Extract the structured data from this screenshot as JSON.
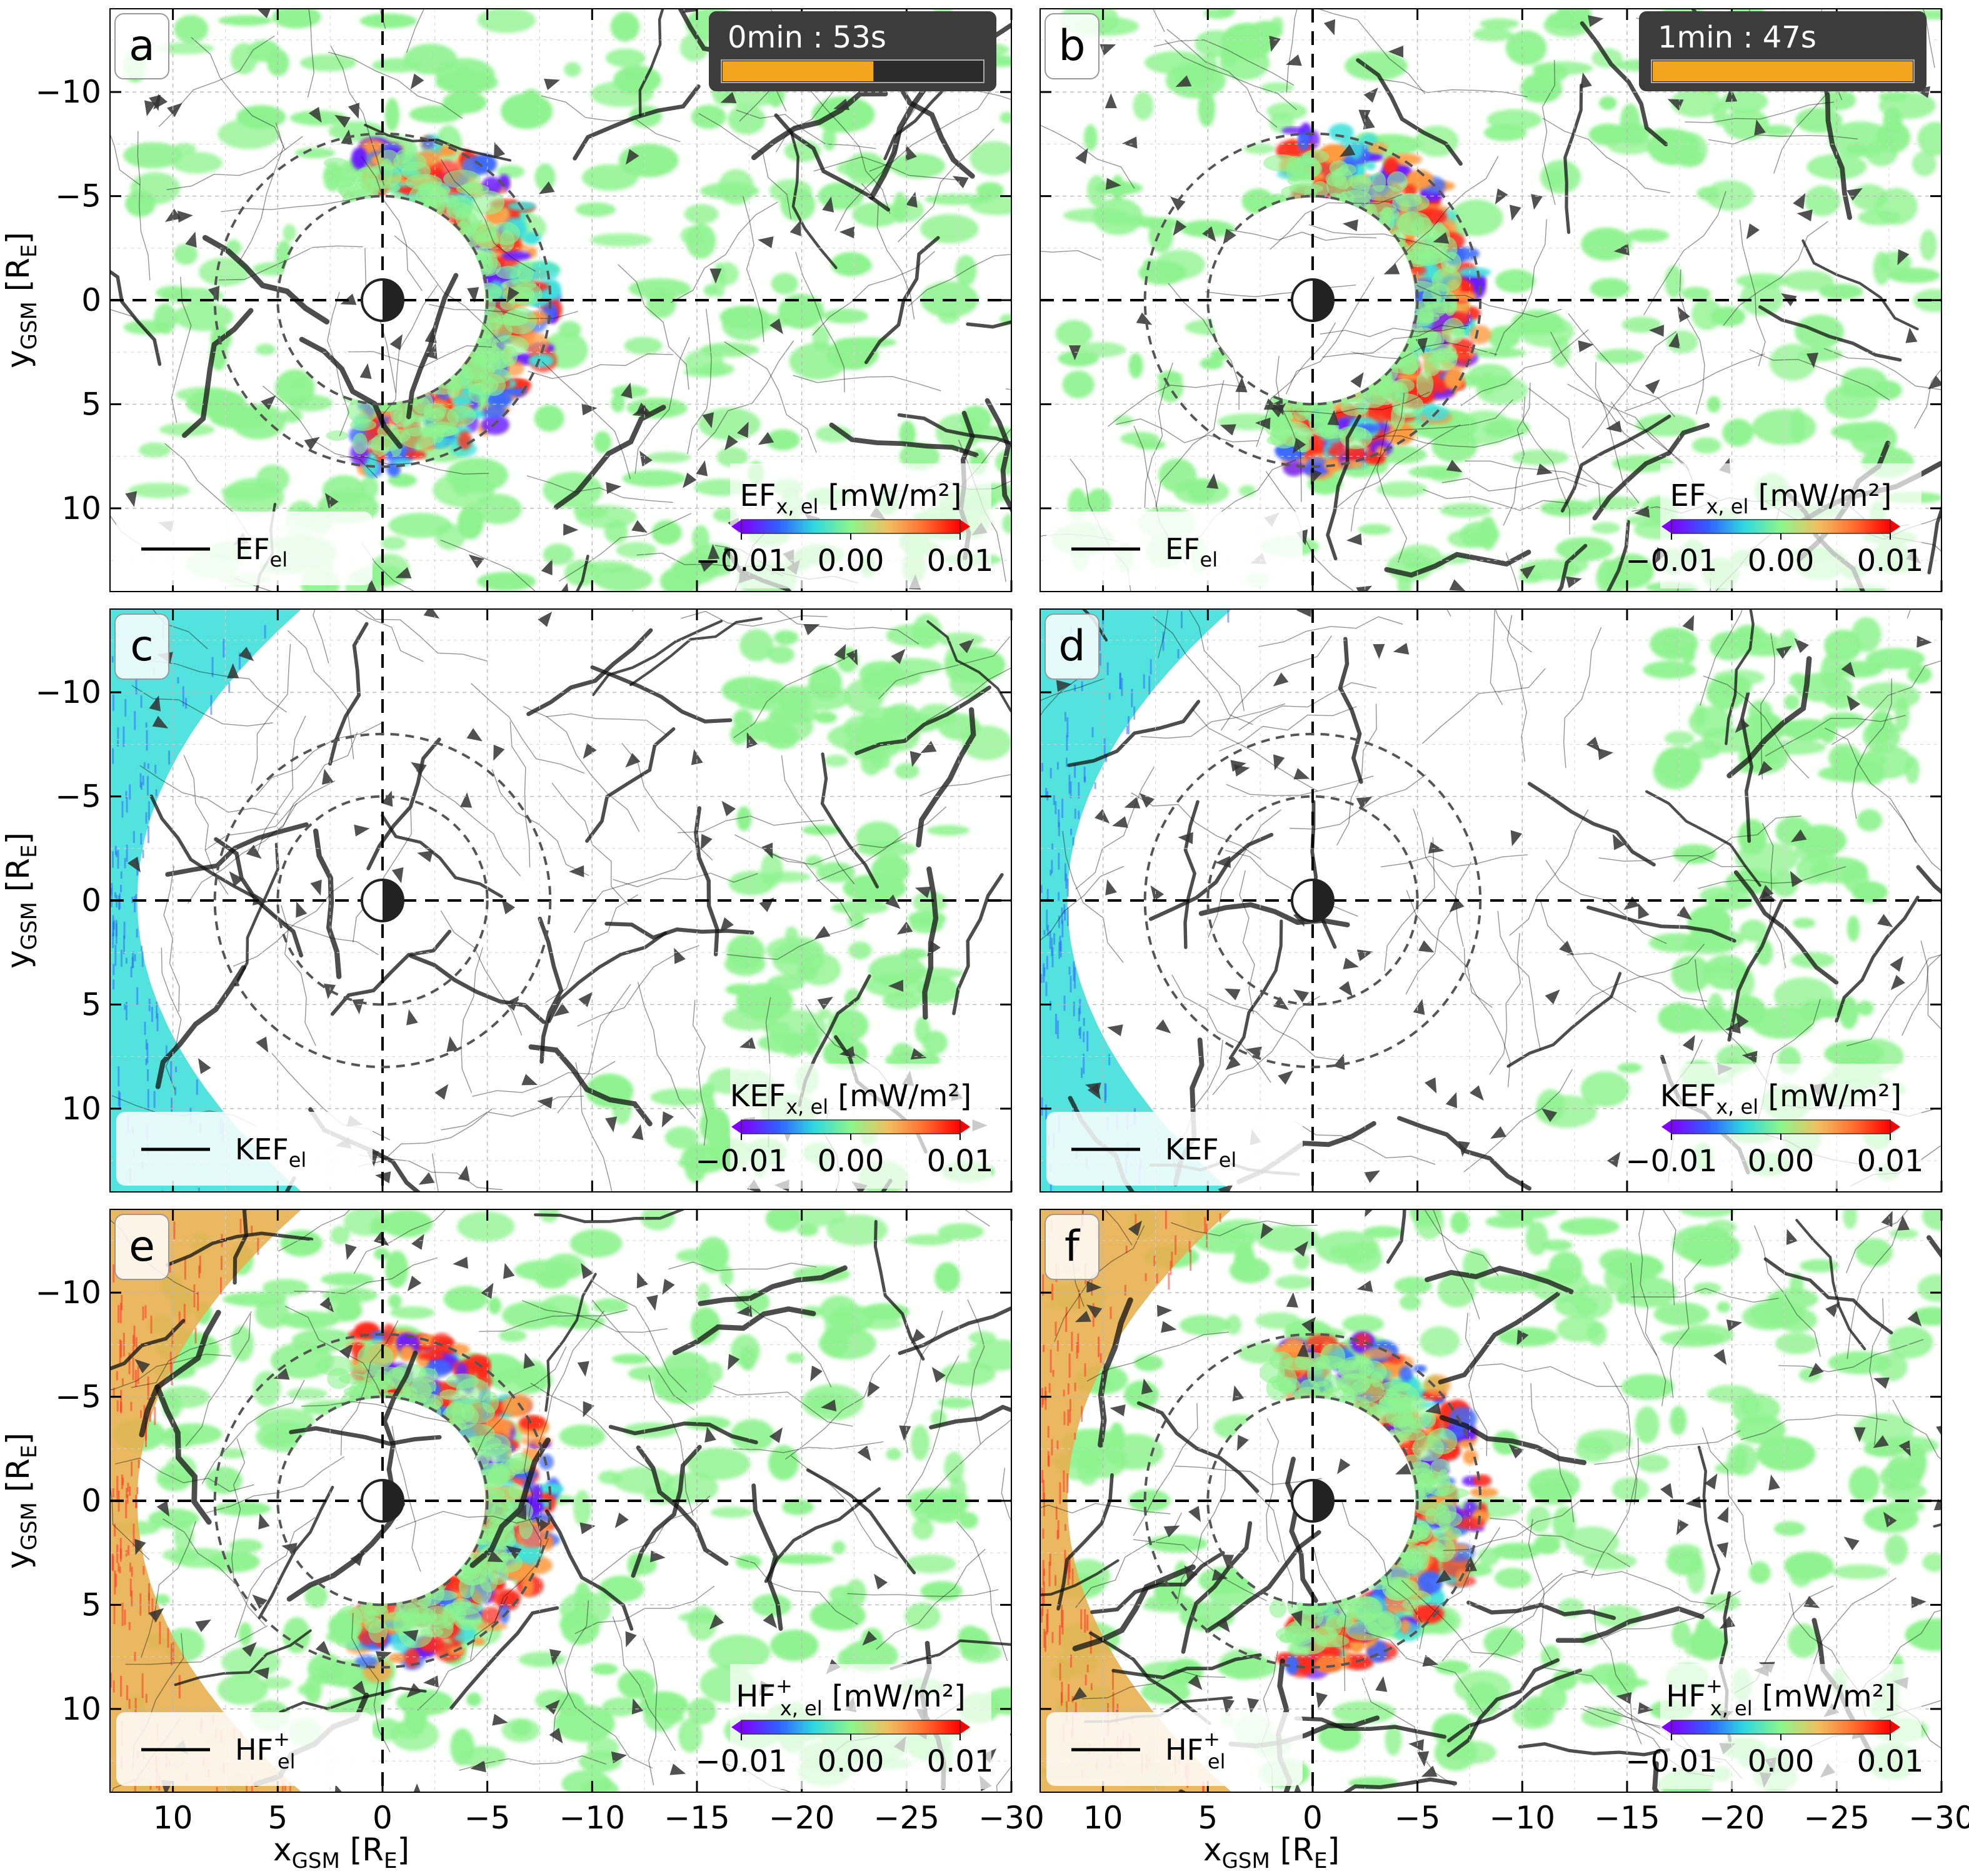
{
  "chart_data": [
    {
      "type": "heatmap",
      "panel": "a",
      "quantity": "EF",
      "timer": {
        "text": "0min : 53s",
        "progress": 0.58
      },
      "colorbar_title": {
        "main": "EF",
        "sup": "",
        "sub": "x, el",
        "unit": " [mW/m²]"
      },
      "legend": {
        "main": "EF",
        "sup": "",
        "sub": "el"
      },
      "region": "ring"
    },
    {
      "type": "heatmap",
      "panel": "b",
      "quantity": "EF",
      "timer": {
        "text": "1min : 47s",
        "progress": 1.0
      },
      "colorbar_title": {
        "main": "EF",
        "sup": "",
        "sub": "x, el",
        "unit": " [mW/m²]"
      },
      "legend": {
        "main": "EF",
        "sup": "",
        "sub": "el"
      },
      "region": "ring"
    },
    {
      "type": "heatmap",
      "panel": "c",
      "quantity": "KEF",
      "colorbar_title": {
        "main": "KEF",
        "sup": "",
        "sub": "x, el",
        "unit": " [mW/m²]"
      },
      "legend": {
        "main": "KEF",
        "sup": "",
        "sub": "el"
      },
      "region": "tail"
    },
    {
      "type": "heatmap",
      "panel": "d",
      "quantity": "KEF",
      "colorbar_title": {
        "main": "KEF",
        "sup": "",
        "sub": "x, el",
        "unit": " [mW/m²]"
      },
      "legend": {
        "main": "KEF",
        "sup": "",
        "sub": "el"
      },
      "region": "tail"
    },
    {
      "type": "heatmap",
      "panel": "e",
      "quantity": "HF",
      "colorbar_title": {
        "main": "HF",
        "sup": "+",
        "sub": "x, el",
        "unit": " [mW/m²]"
      },
      "legend": {
        "main": "HF",
        "sup": "+",
        "sub": "el"
      },
      "region": "ring"
    },
    {
      "type": "heatmap",
      "panel": "f",
      "quantity": "HF",
      "colorbar_title": {
        "main": "HF",
        "sup": "+",
        "sub": "x, el",
        "unit": " [mW/m²]"
      },
      "legend": {
        "main": "HF",
        "sup": "+",
        "sub": "el"
      },
      "region": "ring"
    }
  ],
  "axes": {
    "xlabel": "x",
    "xlabel_sub": "GSM",
    "xlabel_unit": " [R",
    "xlabel_unit_sub": "E",
    "xlabel_close": "]",
    "ylabel": "y",
    "ylabel_sub": "GSM",
    "ylabel_unit": " [R",
    "ylabel_unit_sub": "E",
    "ylabel_close": "]",
    "xlim": [
      13,
      -30
    ],
    "ylim": [
      14,
      -14
    ],
    "xticks": [
      10,
      5,
      0,
      -5,
      -10,
      -15,
      -20,
      -25,
      -30
    ],
    "xtick_labels": [
      "10",
      "5",
      "0",
      "−5",
      "−10",
      "−15",
      "−20",
      "−25",
      "−30"
    ],
    "yticks": [
      -10,
      -5,
      0,
      5,
      10
    ],
    "ytick_labels": [
      "−10",
      "−5",
      "0",
      "5",
      "10"
    ],
    "dashed_circles_radius": [
      5,
      8
    ],
    "grid": true
  },
  "colorbar": {
    "range": [
      -0.01,
      0.01
    ],
    "tick_labels": [
      "−0.01",
      "0.00",
      "0.01"
    ],
    "colors": [
      "#7f00ff",
      "#3060ff",
      "#2fd8e0",
      "#8cf58c",
      "#f0c060",
      "#ff7030",
      "#ff0000"
    ]
  },
  "colors": {
    "stream": "#111111",
    "arrow": "#333333",
    "green": "#8ef38e",
    "cyan": "#40e0dc",
    "red": "#ff2a1a",
    "orange": "#ff9a40",
    "purple": "#6a1aff",
    "timer_bg": "#3c3c3c",
    "timer_fill": "#f3a51e"
  }
}
